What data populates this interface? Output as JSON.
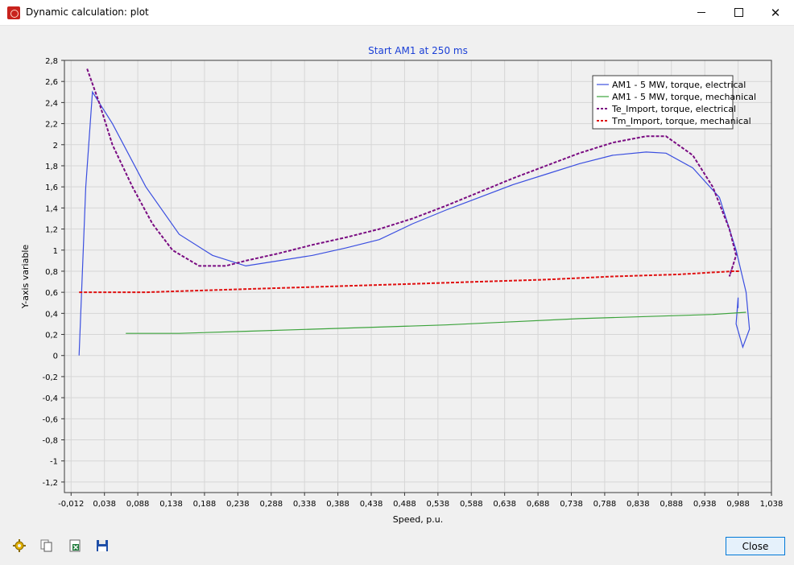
{
  "window": {
    "title": "Dynamic calculation: plot",
    "icon": "app-icon",
    "controls": [
      "minimize-icon",
      "maximize-icon",
      "close-icon"
    ]
  },
  "toolbar": {
    "icons": [
      "settings-gear-icon",
      "copy-icon",
      "export-excel-icon",
      "save-disk-icon"
    ]
  },
  "close_button": "Close",
  "chart_data": {
    "type": "line",
    "title": "Start AM1 at 250 ms",
    "xlabel": "Speed, p.u.",
    "ylabel": "Y-axis variable",
    "xlim": [
      -0.022,
      1.038
    ],
    "ylim": [
      -1.3,
      2.8
    ],
    "x_ticks": [
      "-0,012",
      "0,038",
      "0,088",
      "0,138",
      "0,188",
      "0,238",
      "0,288",
      "0,338",
      "0,388",
      "0,438",
      "0,488",
      "0,538",
      "0,588",
      "0,638",
      "0,688",
      "0,738",
      "0,788",
      "0,838",
      "0,888",
      "0,938",
      "0,988",
      "1,038"
    ],
    "y_ticks": [
      "2,8",
      "2,6",
      "2,4",
      "2,2",
      "2",
      "1,8",
      "1,6",
      "1,4",
      "1,2",
      "1",
      "0,8",
      "0,6",
      "0,4",
      "0,2",
      "0",
      "-0,2",
      "-0,4",
      "-0,6",
      "-0,8",
      "-1",
      "-1,2"
    ],
    "grid": true,
    "legend_position": "top-right",
    "series": [
      {
        "name": "AM1 - 5 MW, torque, electrical",
        "color": "#3b4fe0",
        "style": "solid",
        "points": [
          [
            0,
            0
          ],
          [
            0.01,
            1.6
          ],
          [
            0.02,
            2.5
          ],
          [
            0.05,
            2.2
          ],
          [
            0.1,
            1.6
          ],
          [
            0.15,
            1.15
          ],
          [
            0.2,
            0.95
          ],
          [
            0.25,
            0.85
          ],
          [
            0.3,
            0.9
          ],
          [
            0.35,
            0.95
          ],
          [
            0.4,
            1.02
          ],
          [
            0.45,
            1.1
          ],
          [
            0.5,
            1.25
          ],
          [
            0.55,
            1.38
          ],
          [
            0.6,
            1.5
          ],
          [
            0.65,
            1.62
          ],
          [
            0.7,
            1.72
          ],
          [
            0.75,
            1.82
          ],
          [
            0.8,
            1.9
          ],
          [
            0.85,
            1.93
          ],
          [
            0.88,
            1.92
          ],
          [
            0.92,
            1.78
          ],
          [
            0.96,
            1.5
          ],
          [
            0.985,
            1.0
          ],
          [
            1.0,
            0.6
          ],
          [
            1.005,
            0.25
          ],
          [
            0.995,
            0.08
          ],
          [
            0.985,
            0.3
          ],
          [
            0.988,
            0.55
          ],
          [
            0.988,
            0.45
          ]
        ]
      },
      {
        "name": "AM1 - 5 MW, torque, mechanical",
        "color": "#3ca33c",
        "style": "solid",
        "points": [
          [
            0.07,
            0.21
          ],
          [
            0.15,
            0.21
          ],
          [
            0.25,
            0.23
          ],
          [
            0.35,
            0.25
          ],
          [
            0.45,
            0.27
          ],
          [
            0.55,
            0.29
          ],
          [
            0.65,
            0.32
          ],
          [
            0.75,
            0.35
          ],
          [
            0.85,
            0.37
          ],
          [
            0.95,
            0.39
          ],
          [
            1.0,
            0.41
          ]
        ]
      },
      {
        "name": "Te_Import, torque, electrical",
        "color": "#7a0c82",
        "style": "dashed",
        "points": [
          [
            0.012,
            2.72
          ],
          [
            0.03,
            2.4
          ],
          [
            0.05,
            2.0
          ],
          [
            0.08,
            1.6
          ],
          [
            0.11,
            1.25
          ],
          [
            0.14,
            1.0
          ],
          [
            0.18,
            0.85
          ],
          [
            0.22,
            0.85
          ],
          [
            0.25,
            0.9
          ],
          [
            0.3,
            0.97
          ],
          [
            0.35,
            1.05
          ],
          [
            0.4,
            1.12
          ],
          [
            0.45,
            1.2
          ],
          [
            0.5,
            1.3
          ],
          [
            0.55,
            1.42
          ],
          [
            0.6,
            1.55
          ],
          [
            0.65,
            1.68
          ],
          [
            0.7,
            1.8
          ],
          [
            0.75,
            1.92
          ],
          [
            0.8,
            2.02
          ],
          [
            0.85,
            2.08
          ],
          [
            0.88,
            2.08
          ],
          [
            0.92,
            1.9
          ],
          [
            0.95,
            1.6
          ],
          [
            0.975,
            1.2
          ],
          [
            0.985,
            0.95
          ],
          [
            0.98,
            0.85
          ],
          [
            0.975,
            0.75
          ],
          [
            0.98,
            0.85
          ]
        ]
      },
      {
        "name": "Tm_Import, torque, mechanical",
        "color": "#e01010",
        "style": "dashed",
        "points": [
          [
            0,
            0.6
          ],
          [
            0.05,
            0.6
          ],
          [
            0.1,
            0.6
          ],
          [
            0.2,
            0.62
          ],
          [
            0.3,
            0.64
          ],
          [
            0.4,
            0.66
          ],
          [
            0.5,
            0.68
          ],
          [
            0.6,
            0.7
          ],
          [
            0.7,
            0.72
          ],
          [
            0.8,
            0.75
          ],
          [
            0.9,
            0.77
          ],
          [
            0.98,
            0.8
          ],
          [
            0.99,
            0.8
          ]
        ]
      }
    ]
  }
}
